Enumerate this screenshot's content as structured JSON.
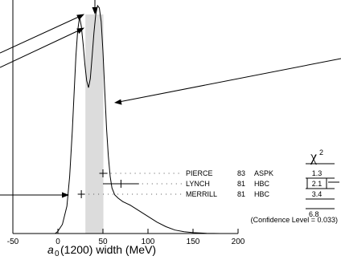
{
  "chart_data": {
    "type": "ideogram",
    "xlabel_main": "a",
    "xlabel_sub": "0",
    "xlabel_rest": "(1200) width (MeV)",
    "xlim": [
      -50,
      200
    ],
    "xticks": [
      {
        "value": -50,
        "label": "-50"
      },
      {
        "value": 0,
        "label": "0"
      },
      {
        "value": 50,
        "label": "50"
      },
      {
        "value": 100,
        "label": "100"
      },
      {
        "value": 150,
        "label": "150"
      },
      {
        "value": 200,
        "label": "200"
      }
    ],
    "band": [
      30.5,
      50.5
    ],
    "curve": [
      [
        -3,
        0.0
      ],
      [
        0,
        0.01
      ],
      [
        5,
        0.04
      ],
      [
        10,
        0.12
      ],
      [
        13,
        0.25
      ],
      [
        16,
        0.45
      ],
      [
        18,
        0.62
      ],
      [
        20,
        0.78
      ],
      [
        22,
        0.89
      ],
      [
        24,
        0.95
      ],
      [
        26,
        0.91
      ],
      [
        28,
        0.83
      ],
      [
        30,
        0.74
      ],
      [
        32,
        0.67
      ],
      [
        34,
        0.64
      ],
      [
        36,
        0.68
      ],
      [
        38,
        0.78
      ],
      [
        40,
        0.88
      ],
      [
        42,
        0.96
      ],
      [
        44,
        1.0
      ],
      [
        46,
        0.99
      ],
      [
        48,
        0.93
      ],
      [
        50,
        0.8
      ],
      [
        52,
        0.63
      ],
      [
        54,
        0.46
      ],
      [
        56,
        0.34
      ],
      [
        58,
        0.25
      ],
      [
        60,
        0.2
      ],
      [
        63,
        0.17
      ],
      [
        67,
        0.155
      ],
      [
        72,
        0.14
      ],
      [
        80,
        0.125
      ],
      [
        90,
        0.1
      ],
      [
        100,
        0.075
      ],
      [
        110,
        0.05
      ],
      [
        120,
        0.03
      ],
      [
        130,
        0.015
      ],
      [
        140,
        0.008
      ],
      [
        150,
        0.004
      ],
      [
        165,
        0.001
      ],
      [
        180,
        0.0
      ]
    ],
    "measurements": [
      {
        "name": "PIERCE",
        "year": "83",
        "tech": "ASPK",
        "chi2": "1.3",
        "value": 50,
        "err_minus": 4,
        "err_plus": 5,
        "boxed": false
      },
      {
        "name": "LYNCH",
        "year": "81",
        "tech": "HBC",
        "chi2": "2.1",
        "value": 70,
        "err_minus": 20,
        "err_plus": 20,
        "boxed": true
      },
      {
        "name": "MERRILL",
        "year": "81",
        "tech": "HBC",
        "chi2": "3.4",
        "value": 26,
        "err_minus": 4,
        "err_plus": 4,
        "boxed": false
      }
    ],
    "chi2_header": "χ",
    "chi2_exp": "2",
    "chi2_total": "6.8",
    "confidence": "(Confidence Level = 0.033)"
  }
}
